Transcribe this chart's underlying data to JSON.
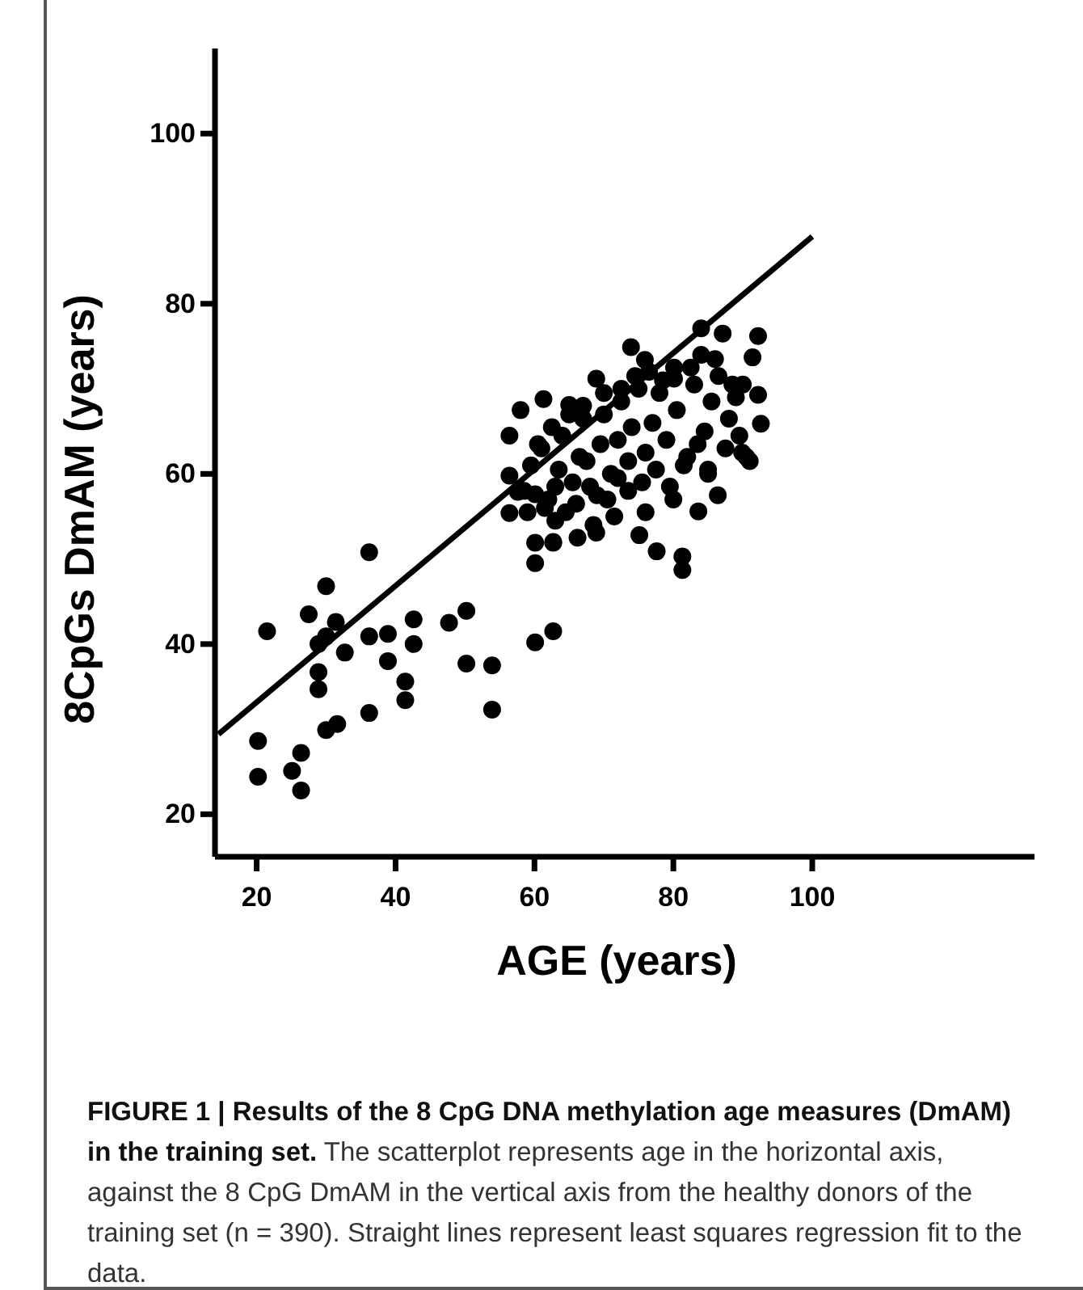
{
  "chart_data": {
    "type": "scatter",
    "xlabel": "AGE (years)",
    "ylabel": "8CpGs DmAM (years)",
    "xlim": [
      14,
      132
    ],
    "ylim": [
      15,
      110
    ],
    "xticks": [
      20,
      40,
      60,
      80,
      100
    ],
    "yticks": [
      20,
      40,
      60,
      80,
      100
    ],
    "grid": false,
    "annotations": [
      "FIGURE 1 | Results of the 8 CpG DNA methylation age measures (DmAM) in the training set.",
      "The scatterplot represents age in the horizontal axis, against the 8 CpG DmAM in the vertical axis from the healthy donors of the training set (n = 390). Straight lines represent least squares regression fit to the data."
    ],
    "series": [
      {
        "marker": "circle",
        "color": "#000000",
        "x": [
          20.2,
          20.2,
          21.5,
          25.1,
          26.4,
          26.4,
          27.5,
          30.0,
          28.9,
          30.0,
          31.4,
          28.9,
          28.9,
          30.0,
          31.6,
          32.7,
          36.2,
          36.2,
          36.2,
          38.9,
          38.9,
          41.4,
          41.4,
          42.6,
          42.6,
          47.7,
          50.2,
          50.2,
          53.9,
          53.9,
          56.4,
          56.4,
          56.4,
          57.6,
          60.1,
          60.1,
          60.1,
          62.7,
          62.7,
          61.3,
          60.1,
          62.7,
          66.2,
          68.9,
          73.9,
          75.9,
          68.9,
          75.1,
          77.6,
          81.3,
          81.3,
          84.0,
          87.1,
          92.2,
          91.4,
          92.2,
          92.6,
          89.9,
          86.4,
          83.6,
          80.1,
          80.1,
          65.0,
          58.5,
          59.5,
          61.0,
          62.0,
          63.5,
          64.0,
          65.5,
          66.5,
          67.0,
          68.0,
          69.5,
          70.0,
          71.0,
          72.0,
          72.5,
          73.5,
          74.0,
          75.0,
          76.0,
          77.0,
          78.0,
          79.0,
          80.5,
          82.0,
          83.0,
          84.5,
          85.5,
          86.5,
          88.0,
          89.0,
          90.0,
          59.0,
          61.5,
          63.0,
          64.5,
          66.0,
          67.5,
          69.0,
          70.5,
          72.0,
          73.5,
          75.5,
          77.5,
          79.5,
          81.5,
          83.5,
          85.0,
          87.5,
          89.5,
          91.0,
          60.5,
          62.5,
          65.0,
          67.0,
          70.0,
          72.5,
          74.5,
          76.5,
          78.5,
          82.5,
          84.0,
          86.0,
          88.5,
          58.0,
          63.0,
          68.5,
          71.5,
          76.0,
          80.0,
          85.0,
          90.5
        ],
        "values": [
          28.6,
          24.4,
          41.5,
          25.1,
          27.2,
          22.8,
          43.5,
          46.8,
          40.0,
          40.9,
          42.6,
          36.7,
          34.7,
          29.9,
          30.6,
          39.0,
          50.8,
          40.9,
          31.9,
          41.2,
          38.0,
          35.6,
          33.4,
          42.9,
          40.0,
          42.5,
          43.9,
          37.7,
          37.5,
          32.3,
          64.5,
          59.8,
          55.4,
          57.9,
          51.9,
          49.5,
          40.2,
          41.5,
          51.9,
          68.8,
          57.6,
          52.0,
          52.5,
          53.1,
          74.9,
          73.4,
          71.2,
          52.8,
          50.9,
          50.3,
          48.7,
          77.1,
          76.5,
          76.2,
          73.7,
          69.3,
          65.9,
          62.5,
          57.5,
          55.6,
          72.5,
          71.2,
          68.1,
          58.0,
          61.0,
          63.0,
          57.0,
          60.5,
          64.5,
          59.0,
          62.0,
          66.5,
          58.5,
          63.5,
          67.0,
          60.0,
          64.0,
          68.5,
          61.5,
          65.5,
          70.0,
          62.5,
          66.0,
          69.5,
          64.0,
          67.5,
          62.0,
          70.5,
          65.0,
          68.5,
          71.5,
          66.5,
          69.0,
          70.5,
          55.5,
          56.0,
          58.5,
          55.5,
          56.5,
          61.5,
          57.5,
          57.0,
          59.5,
          58.0,
          59.0,
          60.5,
          58.5,
          61.0,
          63.5,
          60.0,
          63.0,
          64.5,
          61.5,
          63.5,
          65.5,
          67.0,
          68.0,
          69.5,
          70.0,
          71.5,
          72.0,
          71.0,
          72.5,
          74.0,
          73.5,
          70.5,
          67.5,
          54.5,
          54.0,
          55.0,
          55.5,
          57.0,
          60.5,
          62.0
        ]
      },
      {
        "type": "line",
        "color": "#000000",
        "x": [
          14.5,
          100
        ],
        "values": [
          29.4,
          87.9
        ]
      }
    ]
  }
}
